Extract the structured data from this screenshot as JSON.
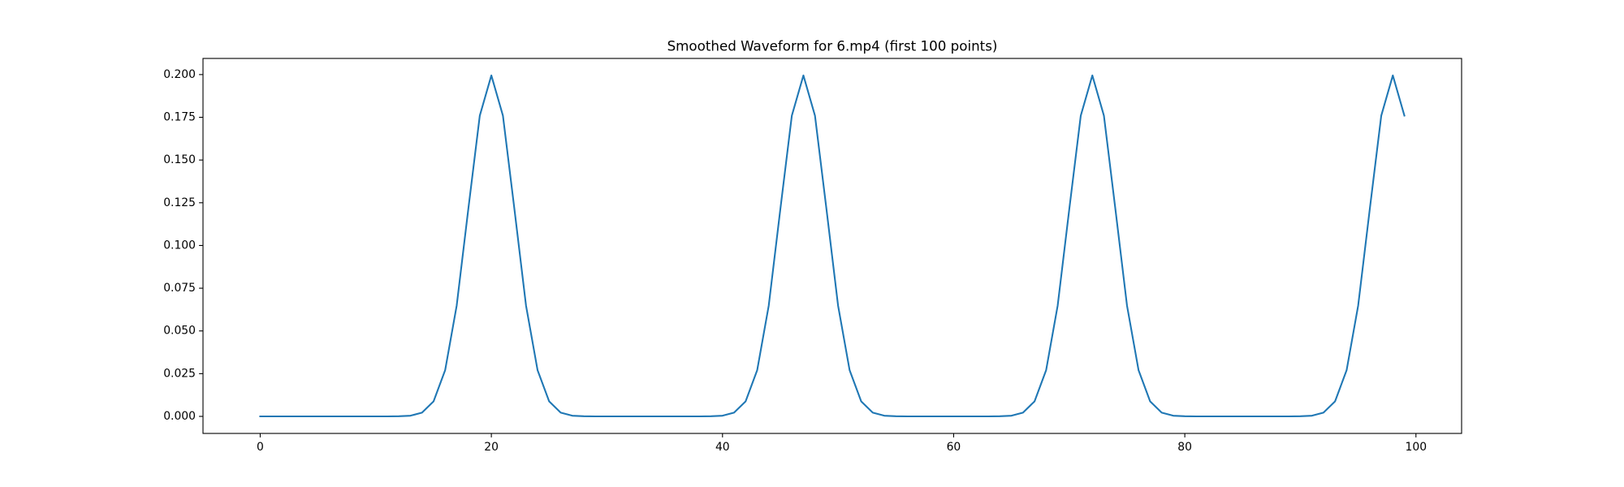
{
  "chart_data": {
    "type": "line",
    "title": "Smoothed Waveform for 6.mp4 (first 100 points)",
    "x": [
      0,
      1,
      2,
      3,
      4,
      5,
      6,
      7,
      8,
      9,
      10,
      11,
      12,
      13,
      14,
      15,
      16,
      17,
      18,
      19,
      20,
      21,
      22,
      23,
      24,
      25,
      26,
      27,
      28,
      29,
      30,
      31,
      32,
      33,
      34,
      35,
      36,
      37,
      38,
      39,
      40,
      41,
      42,
      43,
      44,
      45,
      46,
      47,
      48,
      49,
      50,
      51,
      52,
      53,
      54,
      55,
      56,
      57,
      58,
      59,
      60,
      61,
      62,
      63,
      64,
      65,
      66,
      67,
      68,
      69,
      70,
      71,
      72,
      73,
      74,
      75,
      76,
      77,
      78,
      79,
      80,
      81,
      82,
      83,
      84,
      85,
      86,
      87,
      88,
      89,
      90,
      91,
      92,
      93,
      94,
      95,
      96,
      97,
      98,
      99
    ],
    "series": [
      {
        "color": "#1f77b4",
        "values": [
          0,
          0,
          0,
          0,
          0,
          0,
          0,
          0,
          0,
          0,
          0,
          0,
          0.0001,
          0.0004,
          0.0022,
          0.0088,
          0.027,
          0.0648,
          0.121,
          0.176,
          0.1995,
          0.176,
          0.121,
          0.0648,
          0.027,
          0.0088,
          0.0022,
          0.0004,
          0.0001,
          0,
          0,
          0,
          0,
          0,
          0,
          0,
          0,
          0,
          0,
          0.0001,
          0.0004,
          0.0022,
          0.0088,
          0.027,
          0.0648,
          0.121,
          0.176,
          0.1995,
          0.176,
          0.121,
          0.0648,
          0.027,
          0.0088,
          0.0022,
          0.0004,
          0.0001,
          0,
          0,
          0,
          0,
          0,
          0,
          0,
          0,
          0.0001,
          0.0004,
          0.0022,
          0.0088,
          0.027,
          0.0648,
          0.121,
          0.176,
          0.1995,
          0.176,
          0.121,
          0.0648,
          0.027,
          0.0088,
          0.0022,
          0.0004,
          0.0001,
          0,
          0,
          0,
          0,
          0,
          0,
          0,
          0,
          0,
          0.0001,
          0.0004,
          0.0022,
          0.0088,
          0.027,
          0.0648,
          0.121,
          0.176,
          0.1995,
          0.176
        ]
      }
    ],
    "xlim": [
      -4.95,
      103.95
    ],
    "xticks": [
      0,
      20,
      40,
      60,
      80,
      100
    ],
    "ylim": [
      -0.00997,
      0.20944
    ],
    "yticks": [
      {
        "value": 0,
        "label": "0.000"
      },
      {
        "value": 0.025,
        "label": "0.025"
      },
      {
        "value": 0.05,
        "label": "0.050"
      },
      {
        "value": 0.075,
        "label": "0.075"
      },
      {
        "value": 0.1,
        "label": "0.100"
      },
      {
        "value": 0.125,
        "label": "0.125"
      },
      {
        "value": 0.15,
        "label": "0.150"
      },
      {
        "value": 0.175,
        "label": "0.175"
      },
      {
        "value": 0.2,
        "label": "0.200"
      }
    ],
    "grid": false
  }
}
